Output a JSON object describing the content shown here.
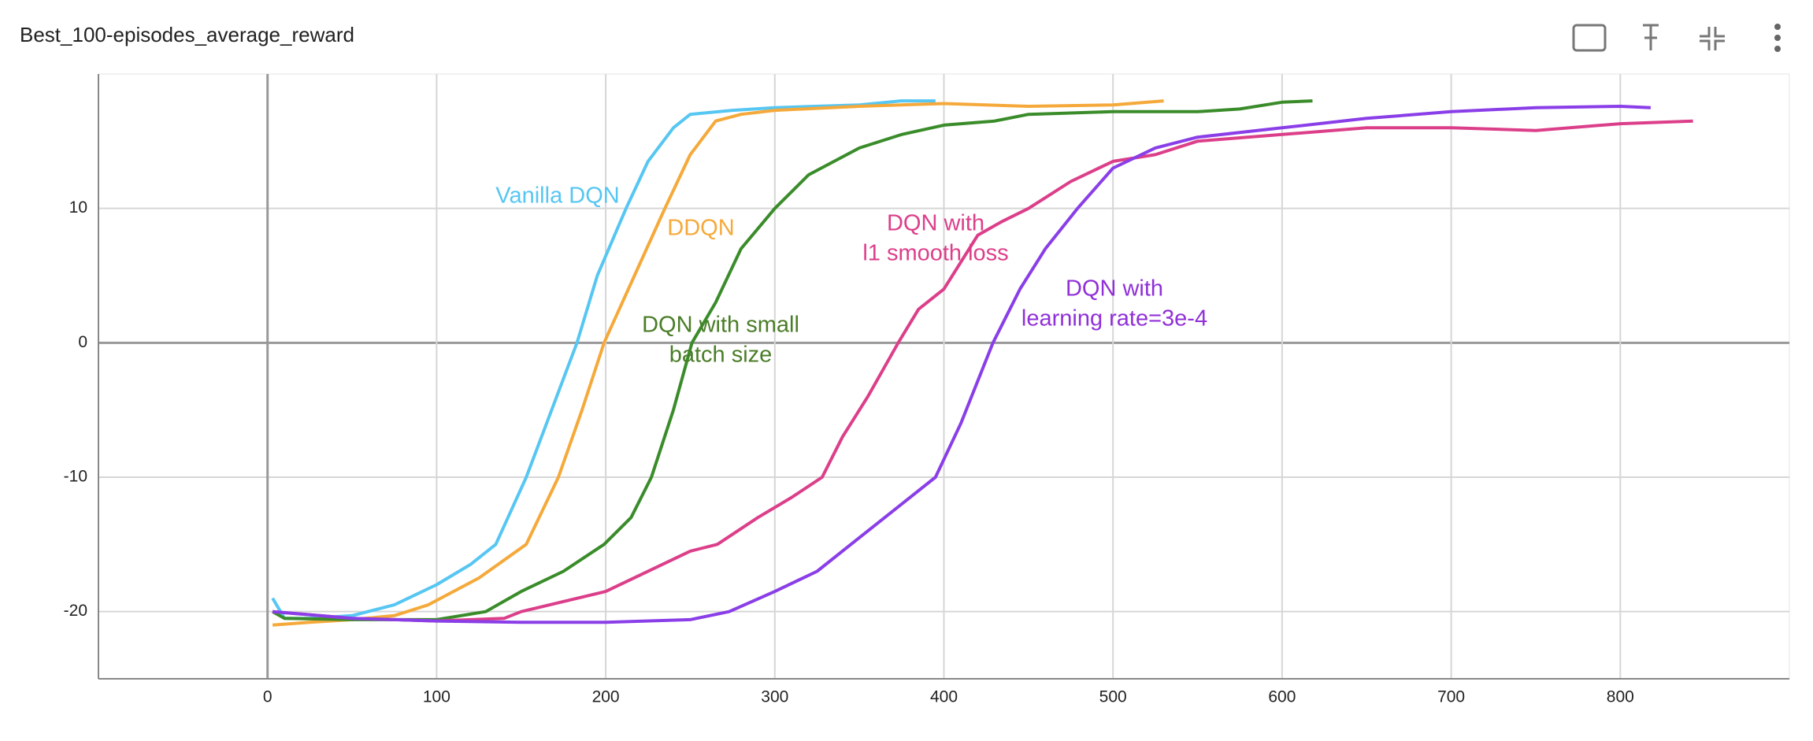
{
  "chart_data": {
    "type": "line",
    "title": "Best_100-episodes_average_reward",
    "xlim": [
      -100,
      900
    ],
    "xticks": [
      0,
      100,
      200,
      300,
      400,
      500,
      600,
      700,
      800
    ],
    "ylim": [
      -25,
      20
    ],
    "yticks": [
      -20,
      -10,
      0,
      10
    ],
    "grid": true,
    "series": [
      {
        "name": "Vanilla DQN",
        "color": "#56c6f2",
        "x": [
          3,
          10,
          25,
          50,
          75,
          100,
          120,
          135,
          153,
          165,
          183,
          195,
          212,
          225,
          240,
          250,
          275,
          300,
          350,
          375,
          395
        ],
        "values": [
          -19,
          -20.5,
          -20.5,
          -20.3,
          -19.5,
          -18,
          -16.5,
          -15,
          -10,
          -6,
          0,
          5,
          10,
          13.5,
          16,
          17,
          17.3,
          17.5,
          17.7,
          18,
          18
        ]
      },
      {
        "name": "DDQN",
        "color": "#f5a93a",
        "x": [
          3,
          25,
          50,
          75,
          95,
          125,
          153,
          172,
          186,
          199,
          217,
          235,
          250,
          265,
          280,
          300,
          350,
          400,
          450,
          500,
          530
        ],
        "values": [
          -21,
          -20.8,
          -20.6,
          -20.3,
          -19.5,
          -17.5,
          -15,
          -10,
          -5,
          0,
          5,
          10,
          14,
          16.5,
          17,
          17.3,
          17.6,
          17.8,
          17.6,
          17.7,
          18
        ]
      },
      {
        "name": "DQN with small batch size",
        "color": "#3a8c2a",
        "x": [
          3,
          10,
          50,
          100,
          129,
          150,
          175,
          199,
          215,
          227,
          240,
          251,
          265,
          280,
          300,
          320,
          350,
          375,
          400,
          430,
          450,
          500,
          550,
          575,
          600,
          618
        ],
        "values": [
          -20,
          -20.5,
          -20.6,
          -20.6,
          -20,
          -18.5,
          -17,
          -15,
          -13,
          -10,
          -5,
          0,
          3,
          7,
          10,
          12.5,
          14.5,
          15.5,
          16.2,
          16.5,
          17,
          17.2,
          17.2,
          17.4,
          17.9,
          18
        ]
      },
      {
        "name": "DQN with l1 smooth loss",
        "color": "#dc3f8a",
        "x": [
          3,
          50,
          100,
          140,
          150,
          200,
          250,
          266,
          290,
          310,
          328,
          340,
          355,
          373,
          385,
          400,
          420,
          434,
          450,
          475,
          500,
          525,
          550,
          600,
          650,
          700,
          750,
          800,
          843
        ],
        "values": [
          -20,
          -20.5,
          -20.7,
          -20.5,
          -20,
          -18.5,
          -15.5,
          -15,
          -13,
          -11.5,
          -10,
          -7,
          -4,
          0,
          2.5,
          4,
          8,
          9,
          10,
          12,
          13.5,
          14,
          15,
          15.5,
          16,
          16,
          15.8,
          16.3,
          16.5
        ]
      },
      {
        "name": "DQN with learning rate=3e-4",
        "color": "#8a3ee8",
        "x": [
          3,
          50,
          100,
          150,
          200,
          250,
          273,
          300,
          325,
          345,
          370,
          395,
          410,
          429,
          445,
          460,
          479,
          500,
          525,
          550,
          600,
          650,
          700,
          750,
          800,
          818
        ],
        "values": [
          -20,
          -20.5,
          -20.7,
          -20.8,
          -20.8,
          -20.6,
          -20,
          -18.5,
          -17,
          -15,
          -12.5,
          -10,
          -6,
          0,
          4,
          7,
          10,
          13,
          14.5,
          15.3,
          16,
          16.7,
          17.2,
          17.5,
          17.6,
          17.5
        ]
      }
    ],
    "annotations": [
      [
        "Vanilla DQN"
      ],
      [
        "DDQN"
      ],
      [
        "DQN with small",
        "batch size"
      ],
      [
        "DQN with",
        "l1 smooth loss"
      ],
      [
        "DQN with",
        "learning rate=3e-4"
      ]
    ]
  }
}
